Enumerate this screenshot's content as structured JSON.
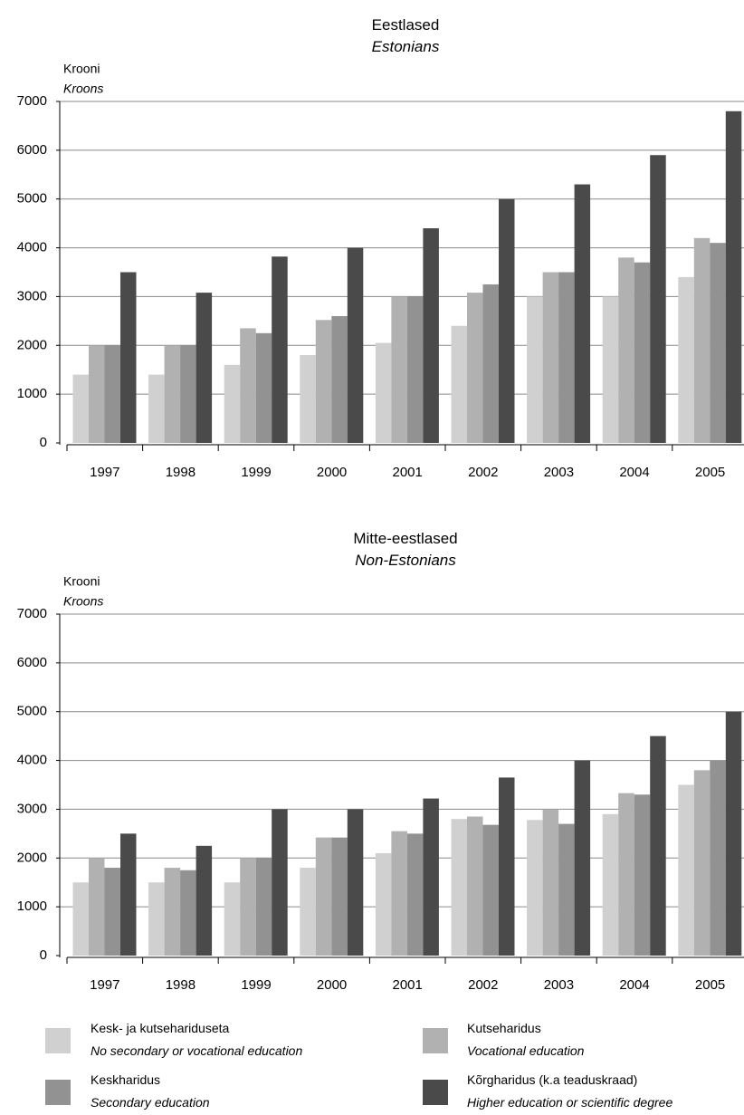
{
  "chart_data": [
    {
      "type": "bar",
      "title": "Eestlased",
      "subtitle": "Estonians",
      "ylabel": "Krooni",
      "ylabel_sub": "Kroons",
      "ylim": [
        0,
        7000
      ],
      "yticks": [
        0,
        1000,
        2000,
        3000,
        4000,
        5000,
        6000,
        7000
      ],
      "grid": true,
      "categories": [
        "1997",
        "1998",
        "1999",
        "2000",
        "2001",
        "2002",
        "2003",
        "2004",
        "2005"
      ],
      "series": [
        {
          "name": "Kesk- ja kutsehariduseta",
          "name_en": "No secondary or vocational education",
          "color": "#d0d0d0",
          "values": [
            1400,
            1400,
            1600,
            1800,
            2050,
            2400,
            3000,
            3000,
            3400
          ]
        },
        {
          "name": "Kutseharidus",
          "name_en": "Vocational education",
          "color": "#b1b1b1",
          "values": [
            2000,
            2000,
            2350,
            2520,
            3000,
            3080,
            3500,
            3800,
            4200
          ]
        },
        {
          "name": "Keskharidus",
          "name_en": "Secondary education",
          "color": "#929292",
          "values": [
            2000,
            2000,
            2250,
            2600,
            3000,
            3250,
            3500,
            3700,
            4100
          ]
        },
        {
          "name": "Kõrgharidus (k.a teaduskraad)",
          "name_en": "Higher education or scientific degree",
          "color": "#4a4a4a",
          "values": [
            3500,
            3080,
            3820,
            4000,
            4400,
            5000,
            5300,
            5900,
            6800
          ]
        }
      ]
    },
    {
      "type": "bar",
      "title": "Mitte-eestlased",
      "subtitle": "Non-Estonians",
      "ylabel": "Krooni",
      "ylabel_sub": "Kroons",
      "ylim": [
        0,
        7000
      ],
      "yticks": [
        0,
        1000,
        2000,
        3000,
        4000,
        5000,
        6000,
        7000
      ],
      "grid": true,
      "categories": [
        "1997",
        "1998",
        "1999",
        "2000",
        "2001",
        "2002",
        "2003",
        "2004",
        "2005"
      ],
      "series": [
        {
          "name": "Kesk- ja kutsehariduseta",
          "name_en": "No secondary or vocational education",
          "color": "#d0d0d0",
          "values": [
            1500,
            1500,
            1500,
            1800,
            2100,
            2800,
            2780,
            2900,
            3500
          ]
        },
        {
          "name": "Kutseharidus",
          "name_en": "Vocational education",
          "color": "#b1b1b1",
          "values": [
            2000,
            1800,
            2000,
            2420,
            2550,
            2850,
            3000,
            3330,
            3800
          ]
        },
        {
          "name": "Keskharidus",
          "name_en": "Secondary education",
          "color": "#929292",
          "values": [
            1800,
            1750,
            2000,
            2420,
            2500,
            2680,
            2700,
            3300,
            4000
          ]
        },
        {
          "name": "Kõrgharidus (k.a teaduskraad)",
          "name_en": "Higher education or scientific degree",
          "color": "#4a4a4a",
          "values": [
            2500,
            2250,
            3000,
            3000,
            3220,
            3650,
            4000,
            4500,
            5000
          ]
        }
      ]
    }
  ],
  "legend": {
    "placement": "bottom",
    "items": [
      {
        "label": "Kesk- ja kutsehariduseta",
        "label_en": "No secondary or vocational education",
        "color": "#d0d0d0"
      },
      {
        "label": "Kutseharidus",
        "label_en": "Vocational education",
        "color": "#b1b1b1"
      },
      {
        "label": "Keskharidus",
        "label_en": "Secondary education",
        "color": "#929292"
      },
      {
        "label": "Kõrgharidus (k.a teaduskraad)",
        "label_en": "Higher education or scientific degree",
        "color": "#4a4a4a"
      }
    ]
  }
}
